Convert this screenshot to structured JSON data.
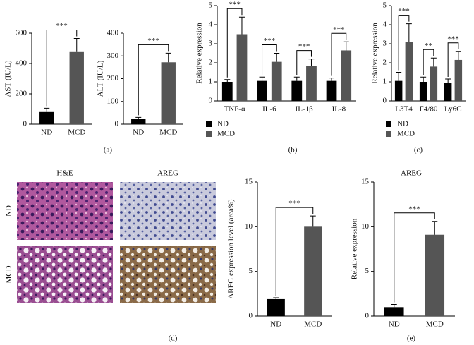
{
  "chart_data": [
    {
      "type": "bar",
      "panel": "(a)",
      "y_label": "AST (IU/L)",
      "categories": [
        "ND",
        "MCD"
      ],
      "values": [
        80,
        480
      ],
      "errors": [
        25,
        85
      ],
      "colors": [
        "#000000",
        "#555555"
      ],
      "ylim": [
        0,
        600
      ],
      "yticks": [
        0,
        200,
        400,
        600
      ],
      "significance": "***"
    },
    {
      "type": "bar",
      "y_label": "ALT (IU/L)",
      "categories": [
        "ND",
        "MCD"
      ],
      "values": [
        22,
        272
      ],
      "errors": [
        8,
        40
      ],
      "colors": [
        "#000000",
        "#555555"
      ],
      "ylim": [
        0,
        400
      ],
      "yticks": [
        0,
        100,
        200,
        300,
        400
      ],
      "significance": "***"
    },
    {
      "type": "grouped_bar",
      "panel": "(b)",
      "y_label": "Relative expression",
      "categories": [
        "TNF-α",
        "IL-6",
        "IL-1β",
        "IL-8"
      ],
      "series": [
        {
          "name": "ND",
          "color": "#000000",
          "values": [
            1.0,
            1.05,
            1.05,
            1.05
          ],
          "errors": [
            0.12,
            0.2,
            0.2,
            0.15
          ]
        },
        {
          "name": "MCD",
          "color": "#555555",
          "values": [
            3.5,
            2.05,
            1.85,
            2.65
          ],
          "errors": [
            0.9,
            0.45,
            0.35,
            0.45
          ]
        }
      ],
      "ylim": [
        0,
        5
      ],
      "yticks": [
        0,
        1,
        2,
        3,
        4,
        5
      ],
      "significance": [
        "***",
        "***",
        "***",
        "***"
      ],
      "legend": "bottom"
    },
    {
      "type": "grouped_bar",
      "panel": "(c)",
      "y_label": "Relative expression",
      "categories": [
        "L3T4",
        "F4/80",
        "Ly6G"
      ],
      "series": [
        {
          "name": "ND",
          "color": "#000000",
          "values": [
            1.05,
            1.0,
            0.95
          ],
          "errors": [
            0.45,
            0.25,
            0.2
          ]
        },
        {
          "name": "MCD",
          "color": "#555555",
          "values": [
            3.1,
            1.8,
            2.15
          ],
          "errors": [
            0.95,
            0.45,
            0.45
          ]
        }
      ],
      "ylim": [
        0,
        5
      ],
      "yticks": [
        0,
        1,
        2,
        3,
        4,
        5
      ],
      "significance": [
        "***",
        "**",
        "***"
      ],
      "legend": "bottom"
    },
    {
      "type": "bar",
      "y_label": "AREG expression level (area%)",
      "categories": [
        "ND",
        "MCD"
      ],
      "values": [
        1.9,
        10
      ],
      "errors": [
        0.15,
        1.2
      ],
      "colors": [
        "#000000",
        "#555555"
      ],
      "ylim": [
        0,
        15
      ],
      "yticks": [
        0,
        5,
        10,
        15
      ],
      "significance": "***"
    },
    {
      "type": "bar",
      "panel": "(e)",
      "title": "AREG",
      "y_label": "Relative expression",
      "categories": [
        "ND",
        "MCD"
      ],
      "values": [
        1.0,
        9.1
      ],
      "errors": [
        0.3,
        1.5
      ],
      "colors": [
        "#000000",
        "#555555"
      ],
      "ylim": [
        0,
        15
      ],
      "yticks": [
        0,
        5,
        10,
        15
      ],
      "significance": "***"
    }
  ],
  "micrographs": {
    "panel": "(d)",
    "columns": [
      "H&E",
      "AREG"
    ],
    "rows": [
      "ND",
      "MCD"
    ]
  }
}
